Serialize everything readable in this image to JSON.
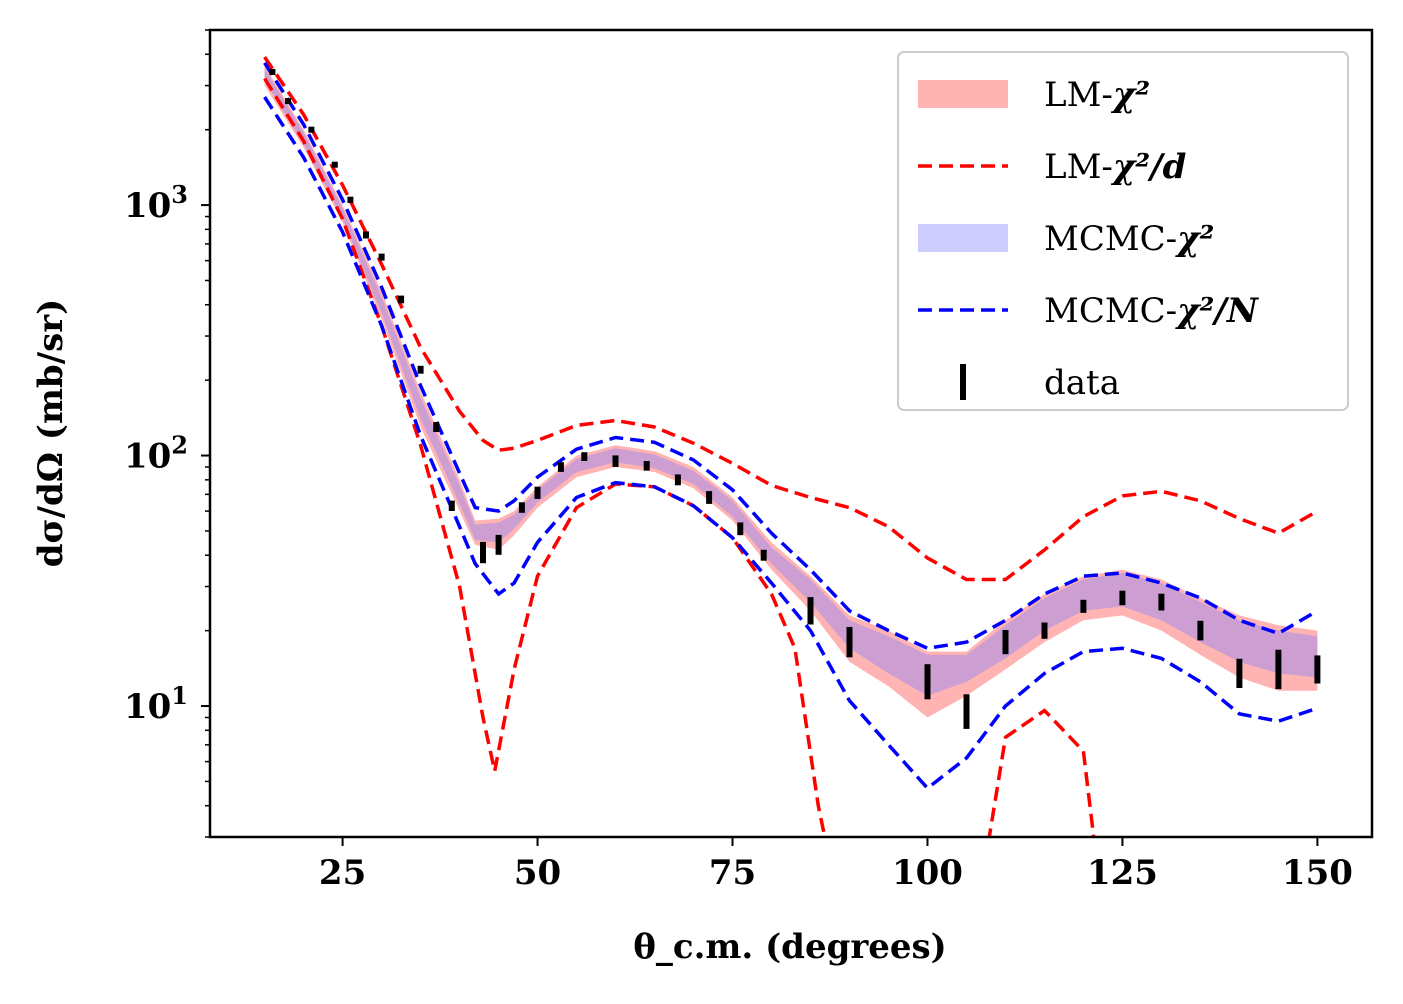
{
  "chart_data": {
    "type": "line",
    "title": "",
    "xlabel": "θ_c.m. (degrees)",
    "ylabel": "dσ/dΩ (mb/sr)",
    "xlim": [
      8,
      157
    ],
    "ylim": [
      3.0,
      5000
    ],
    "yscale": "log",
    "grid": false,
    "legend_position": "top-right",
    "x_ticks": [
      25,
      50,
      75,
      100,
      125,
      150
    ],
    "x_tick_labels": [
      "25",
      "50",
      "75",
      "100",
      "125",
      "150"
    ],
    "y_ticks": [
      10,
      100,
      1000
    ],
    "y_tick_labels": [
      {
        "base": "10",
        "exp": "1"
      },
      {
        "base": "10",
        "exp": "2"
      },
      {
        "base": "10",
        "exp": "3"
      }
    ],
    "colors": {
      "lm_band": "#ff8080",
      "lm_dashed": "#ff0000",
      "mcmc_band": "#8080ff",
      "mcmc_dashed": "#0000ff",
      "data": "#000000"
    },
    "legend": [
      {
        "label": "LM-",
        "math": "χ²",
        "kind": "band",
        "color": "#ffb3b3"
      },
      {
        "label": "LM-",
        "math": "χ²/d",
        "kind": "dashed",
        "color": "#ff0000"
      },
      {
        "label": "MCMC-",
        "math": "χ²",
        "kind": "band",
        "color": "#ccccff"
      },
      {
        "label": "MCMC-",
        "math": "χ²/N",
        "kind": "dashed",
        "color": "#0000ff"
      },
      {
        "label": "data",
        "math": "",
        "kind": "errorbar",
        "color": "#000000"
      }
    ],
    "series": [
      {
        "name": "LM-χ²",
        "kind": "band",
        "x": [
          15,
          20,
          25,
          30,
          35,
          40,
          42,
          45,
          47,
          50,
          55,
          60,
          65,
          70,
          75,
          80,
          85,
          90,
          95,
          100,
          105,
          110,
          115,
          120,
          125,
          130,
          135,
          140,
          145,
          150
        ],
        "upper": [
          3600,
          2000,
          1000,
          450,
          180,
          80,
          55,
          56,
          60,
          75,
          100,
          110,
          104,
          90,
          68,
          45,
          33,
          23,
          20,
          16.5,
          16.5,
          22,
          28,
          33,
          35,
          32,
          27,
          23,
          21,
          20
        ],
        "lower": [
          3000,
          1700,
          850,
          350,
          130,
          60,
          44,
          42,
          48,
          62,
          82,
          90,
          86,
          74,
          55,
          35,
          24,
          15,
          12,
          9,
          11,
          14,
          18,
          22,
          23,
          20,
          16,
          13,
          11.5,
          11.5
        ]
      },
      {
        "name": "MCMC-χ²",
        "kind": "band",
        "x": [
          15,
          20,
          25,
          30,
          35,
          40,
          42,
          45,
          47,
          50,
          55,
          60,
          65,
          70,
          75,
          80,
          85,
          90,
          95,
          100,
          105,
          110,
          115,
          120,
          125,
          130,
          135,
          140,
          145,
          150
        ],
        "upper": [
          3500,
          1950,
          970,
          430,
          170,
          76,
          53,
          54,
          58,
          73,
          97,
          107,
          101,
          87,
          66,
          43,
          32,
          22,
          19,
          16,
          16,
          21,
          27,
          32,
          34,
          31,
          26,
          22,
          20,
          19
        ],
        "lower": [
          3150,
          1750,
          880,
          370,
          140,
          64,
          46,
          45,
          51,
          65,
          86,
          94,
          89,
          77,
          57,
          37,
          26,
          17,
          13.5,
          11,
          12.5,
          15.5,
          20,
          24,
          25,
          22,
          18,
          15,
          13.5,
          13
        ]
      },
      {
        "name": "LM-χ²/d upper",
        "kind": "dashed",
        "x": [
          15,
          20,
          25,
          30,
          35,
          40,
          43,
          45,
          47,
          50,
          55,
          60,
          65,
          70,
          75,
          80,
          85,
          90,
          95,
          100,
          105,
          110,
          115,
          120,
          125,
          130,
          135,
          140,
          145,
          150
        ],
        "values": [
          3900,
          2300,
          1200,
          580,
          270,
          150,
          115,
          105,
          107,
          115,
          132,
          138,
          130,
          112,
          93,
          76,
          68,
          62,
          52,
          39,
          32,
          32,
          42,
          57,
          69,
          72,
          66,
          56,
          49,
          60
        ]
      },
      {
        "name": "LM-χ²/d lower",
        "kind": "dashed",
        "x": [
          15,
          20,
          25,
          30,
          35,
          40,
          43,
          44.5,
          47,
          50,
          55,
          60,
          65,
          70,
          75,
          80,
          83,
          86,
          88,
          107,
          110,
          115,
          120,
          122
        ],
        "values": [
          3200,
          1800,
          880,
          330,
          110,
          30,
          9,
          5.5,
          14,
          33,
          62,
          77,
          75,
          63,
          47,
          28,
          17,
          4,
          2.0,
          2.0,
          7.5,
          9.6,
          6.6,
          2.0
        ]
      },
      {
        "name": "MCMC-χ²/N upper",
        "kind": "dashed",
        "x": [
          15,
          20,
          25,
          30,
          35,
          40,
          42,
          45,
          47,
          50,
          55,
          60,
          65,
          70,
          75,
          80,
          85,
          90,
          95,
          100,
          105,
          110,
          115,
          120,
          125,
          130,
          135,
          140,
          145,
          150
        ],
        "values": [
          3700,
          2100,
          1050,
          470,
          190,
          85,
          62,
          60,
          66,
          82,
          106,
          118,
          113,
          96,
          73,
          49,
          35,
          24,
          20,
          17,
          18,
          22,
          28,
          33,
          34,
          31,
          27,
          22,
          19.5,
          24
        ]
      },
      {
        "name": "MCMC-χ²/N lower",
        "kind": "dashed",
        "x": [
          15,
          20,
          25,
          30,
          35,
          40,
          42,
          45,
          47,
          50,
          55,
          60,
          65,
          70,
          75,
          80,
          85,
          90,
          95,
          100,
          105,
          110,
          115,
          120,
          125,
          130,
          135,
          140,
          145,
          150
        ],
        "values": [
          2700,
          1550,
          780,
          330,
          120,
          52,
          37,
          28,
          31,
          45,
          68,
          78,
          75,
          63,
          47,
          31,
          20,
          10.5,
          7,
          4.7,
          6.2,
          10,
          13.5,
          16.5,
          17,
          15.5,
          12.5,
          9.3,
          8.7,
          9.8
        ]
      },
      {
        "name": "data",
        "kind": "errorbar",
        "x": [
          16,
          18,
          21,
          24,
          26,
          28,
          30,
          32.5,
          35,
          37,
          39,
          43,
          45,
          48,
          50,
          53,
          56,
          60,
          64,
          68,
          72,
          76,
          79,
          85,
          90,
          100,
          105,
          110,
          115,
          120,
          125,
          130,
          135,
          140,
          145,
          150
        ],
        "values": [
          3400,
          2600,
          2000,
          1450,
          1050,
          760,
          620,
          420,
          220,
          130,
          63,
          41,
          44,
          62,
          71,
          90,
          99,
          95,
          91,
          80,
          68,
          51,
          40,
          24,
          18,
          12.5,
          9.5,
          18,
          20,
          25,
          27,
          26,
          20,
          13.5,
          14,
          14
        ],
        "errors": [
          90,
          70,
          55,
          40,
          30,
          25,
          20,
          15,
          8,
          6,
          3,
          4,
          4,
          3,
          4,
          4,
          4,
          5,
          4,
          4,
          4,
          3,
          2,
          3,
          2.5,
          2,
          1.5,
          2,
          1.5,
          1.5,
          1.8,
          2,
          1.8,
          1.8,
          2.5,
          1.8
        ]
      }
    ]
  }
}
